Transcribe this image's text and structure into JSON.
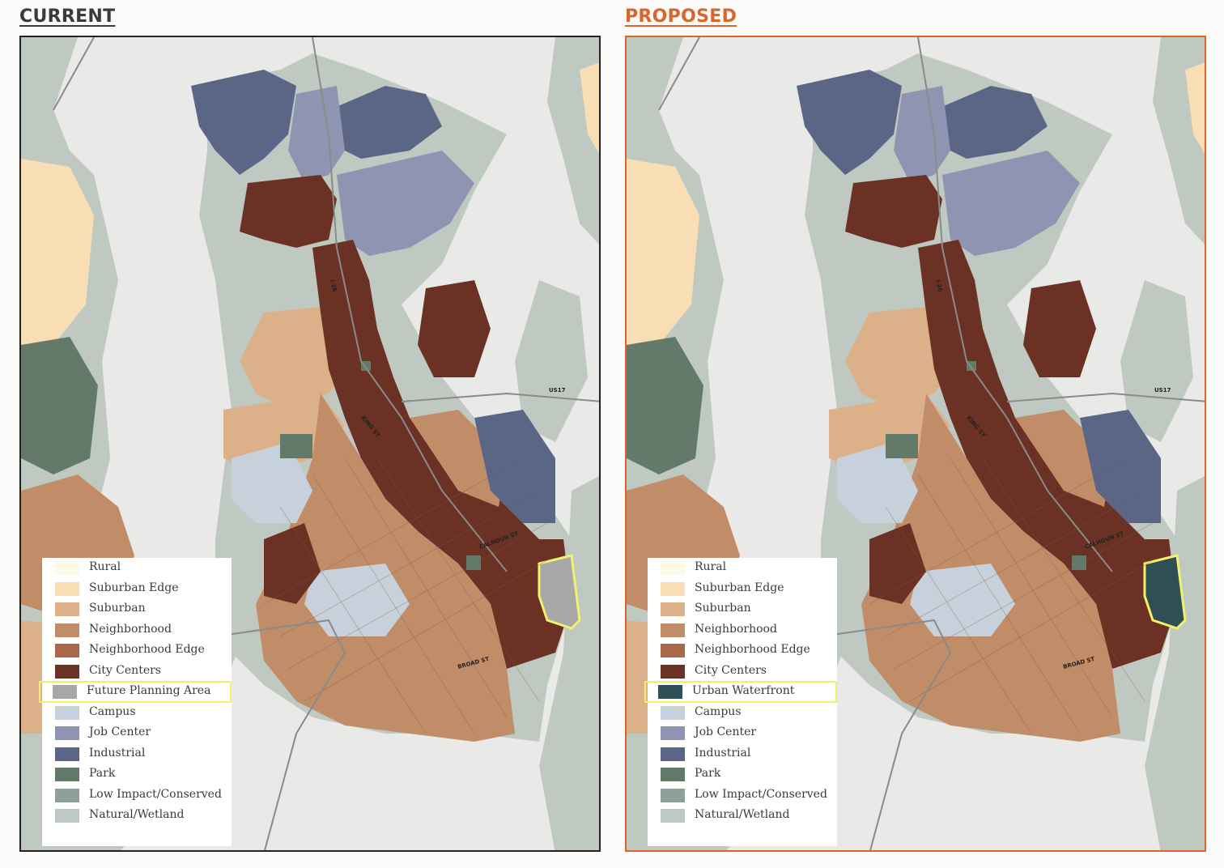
{
  "current": {
    "title": "CURRENT",
    "legend": [
      {
        "label": "Rural",
        "color": "#fdfbe6"
      },
      {
        "label": "Suburban Edge",
        "color": "#f8ddb5"
      },
      {
        "label": "Suburban",
        "color": "#dcb089"
      },
      {
        "label": "Neighborhood",
        "color": "#c18c68"
      },
      {
        "label": "Neighborhood Edge",
        "color": "#a9684a"
      },
      {
        "label": "City Centers",
        "color": "#6b3124"
      },
      {
        "label": "Future Planning Area",
        "color": "#a8a8a8",
        "highlighted": true
      },
      {
        "label": "Campus",
        "color": "#c7d1dc"
      },
      {
        "label": "Job Center",
        "color": "#8e94b2"
      },
      {
        "label": "Industrial",
        "color": "#5b6585"
      },
      {
        "label": "Park",
        "color": "#63796a"
      },
      {
        "label": "Low Impact/Conserved",
        "color": "#8ea097"
      },
      {
        "label": "Natural/Wetland",
        "color": "#bfc9c2"
      }
    ],
    "waterfront_area_color": "#a8a8a8"
  },
  "proposed": {
    "title": "PROPOSED",
    "legend": [
      {
        "label": "Rural",
        "color": "#fdfbe6"
      },
      {
        "label": "Suburban Edge",
        "color": "#f8ddb5"
      },
      {
        "label": "Suburban",
        "color": "#dcb089"
      },
      {
        "label": "Neighborhood",
        "color": "#c18c68"
      },
      {
        "label": "Neighborhood Edge",
        "color": "#a9684a"
      },
      {
        "label": "City Centers",
        "color": "#6b3124"
      },
      {
        "label": "Urban Waterfront",
        "color": "#2f4e55",
        "highlighted": true
      },
      {
        "label": "Campus",
        "color": "#c7d1dc"
      },
      {
        "label": "Job Center",
        "color": "#8e94b2"
      },
      {
        "label": "Industrial",
        "color": "#5b6585"
      },
      {
        "label": "Park",
        "color": "#63796a"
      },
      {
        "label": "Low Impact/Conserved",
        "color": "#8ea097"
      },
      {
        "label": "Natural/Wetland",
        "color": "#bfc9c2"
      }
    ],
    "waterfront_area_color": "#2f4e55"
  },
  "street_labels": {
    "king": "KING ST",
    "calhoun": "CALHOUN ST",
    "broad": "BROAD ST",
    "us17": "US17",
    "i26": "I-26"
  },
  "colors": {
    "water": "#e9e9e8",
    "highlight": "#f2f26a",
    "proposed_accent": "#d9652b"
  }
}
